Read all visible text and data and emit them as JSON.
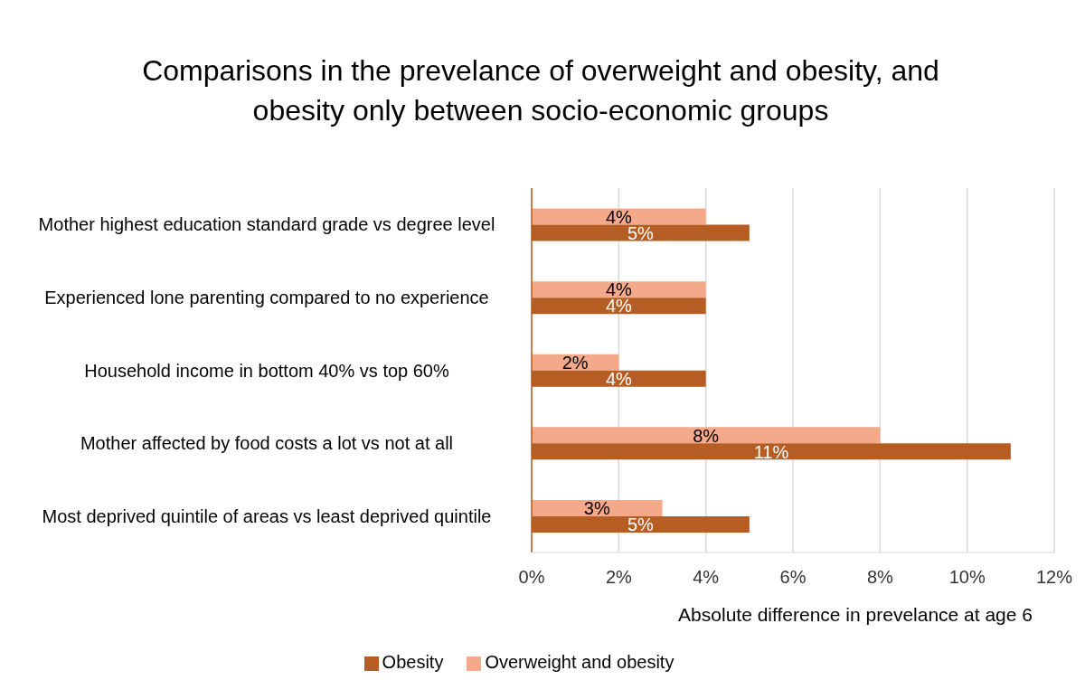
{
  "chart_data": {
    "type": "bar",
    "orientation": "horizontal",
    "title": "Comparisons in the prevelance of overweight and obesity, and obesity only between socio-economic groups",
    "xlabel": "Absolute difference in prevelance at age 6",
    "categories": [
      "Mother highest education standard grade vs degree level",
      "Experienced lone parenting compared to no experience",
      "Household income in bottom 40% vs top 60%",
      "Mother affected by food costs a lot vs not at all",
      "Most deprived quintile of areas vs least deprived quintile"
    ],
    "series": [
      {
        "name": "Overweight and obesity",
        "color": "#f4a98a",
        "values": [
          4,
          4,
          2,
          8,
          3
        ],
        "value_labels": [
          "4%",
          "4%",
          "2%",
          "8%",
          "3%"
        ]
      },
      {
        "name": "Obesity",
        "color": "#b55d22",
        "values": [
          5,
          4,
          4,
          11,
          5
        ],
        "value_labels": [
          "5%",
          "4%",
          "4%",
          "11%",
          "5%"
        ]
      }
    ],
    "xlim": [
      0,
      12
    ],
    "xticks": [
      {
        "value": 0,
        "label": "0%"
      },
      {
        "value": 2,
        "label": "2%"
      },
      {
        "value": 4,
        "label": "4%"
      },
      {
        "value": 6,
        "label": "6%"
      },
      {
        "value": 8,
        "label": "8%"
      },
      {
        "value": 10,
        "label": "10%"
      },
      {
        "value": 12,
        "label": "12%"
      }
    ],
    "grid": "x",
    "legend": "bottom"
  }
}
